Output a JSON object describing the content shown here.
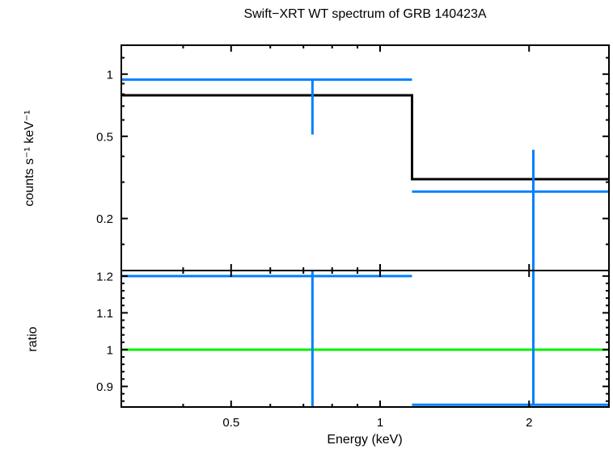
{
  "title": "Swift−XRT WT spectrum of GRB 140423A",
  "colors": {
    "data_points": "#0080ff",
    "model_line": "#000000",
    "reference_line": "#00f000",
    "axis": "#000000",
    "background": "#ffffff"
  },
  "chart_data": [
    {
      "type": "line",
      "panel": "spectrum",
      "title": "Swift−XRT WT spectrum of GRB 140423A",
      "ylabel": "counts s⁻¹ keV⁻¹",
      "xscale": "log",
      "yscale": "log",
      "xlim": [
        0.3,
        2.9
      ],
      "ylim": [
        0.112,
        1.38
      ],
      "grid": false,
      "legend": "none",
      "x_ticks_major": {
        "values": [
          0.5,
          1,
          2
        ],
        "labels": [
          "0.5",
          "1",
          "2"
        ]
      },
      "x_ticks_minor": [
        0.4,
        0.6,
        0.7,
        0.8,
        0.9
      ],
      "y_ticks_major": {
        "values": [
          1,
          0.5,
          0.2
        ],
        "labels": [
          "1",
          "0.5",
          "0.2"
        ]
      },
      "y_ticks_minor": [
        1.2,
        0.9,
        0.8,
        0.7,
        0.6,
        0.4,
        0.3,
        0.15
      ],
      "model_step": {
        "name": "folded-model",
        "edges_keV": [
          0.3,
          1.16,
          2.9
        ],
        "values": [
          0.79,
          0.31
        ],
        "color": "#000000"
      },
      "points_color": "#0080ff",
      "points": [
        {
          "x": 0.73,
          "xlo": 0.3,
          "xhi": 1.16,
          "y": 0.94,
          "y_err_lo_to": 0.51,
          "y_err_hi_to": 0.94
        },
        {
          "x": 2.04,
          "xlo": 1.16,
          "xhi": 2.9,
          "y": 0.27,
          "y_err_lo_to": 0.112,
          "y_err_lo_offscale": true,
          "y_err_hi_to": 0.43
        }
      ]
    },
    {
      "type": "line",
      "panel": "ratio",
      "xlabel": "Energy (keV)",
      "ylabel": "ratio",
      "xscale": "log",
      "yscale": "linear",
      "xlim": [
        0.3,
        2.9
      ],
      "ylim": [
        0.844,
        1.215
      ],
      "grid": false,
      "legend": "none",
      "x_ticks_major": {
        "values": [
          0.5,
          1,
          2
        ],
        "labels": [
          "0.5",
          "1",
          "2"
        ]
      },
      "x_ticks_minor": [
        0.4,
        0.6,
        0.7,
        0.8,
        0.9
      ],
      "y_ticks_major": {
        "values": [
          1.2,
          1.1,
          1,
          0.9
        ],
        "labels": [
          "1.2",
          "1.1",
          "1",
          "0.9"
        ]
      },
      "y_ticks_minor": [
        0.86,
        0.88,
        0.92,
        0.94,
        0.96,
        0.98,
        1.02,
        1.04,
        1.06,
        1.08,
        1.12,
        1.14,
        1.16,
        1.18
      ],
      "reference_line": {
        "y": 1.0,
        "color": "#00f000"
      },
      "points_color": "#0080ff",
      "points": [
        {
          "x": 0.73,
          "xlo": 0.3,
          "xhi": 1.16,
          "y": 1.2,
          "y_err_lo_to": 0.844,
          "y_err_lo_offscale": true,
          "y_err_hi_to": 1.215,
          "y_err_hi_offscale": true
        },
        {
          "x": 2.04,
          "xlo": 1.16,
          "xhi": 2.9,
          "y": 0.85,
          "y_err_lo_to": 0.85,
          "y_err_hi_to": 1.215,
          "y_err_hi_offscale": true
        }
      ]
    }
  ]
}
